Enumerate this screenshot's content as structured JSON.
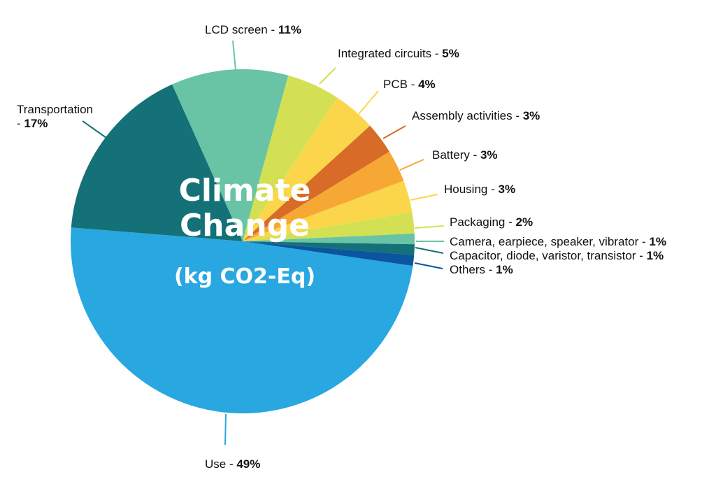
{
  "chart_data": {
    "type": "pie",
    "title": "Climate Change",
    "subtitle": "(kg CO2-Eq)",
    "slices": [
      {
        "label": "Use",
        "value": 49,
        "pct": "49%",
        "color": "#28A7E1"
      },
      {
        "label": "Transportation",
        "value": 17,
        "pct": "17%",
        "color": "#137177"
      },
      {
        "label": "LCD screen",
        "value": 11,
        "pct": "11%",
        "color": "#68C4A4"
      },
      {
        "label": "Integrated circuits",
        "value": 5,
        "pct": "5%",
        "color": "#D4E053"
      },
      {
        "label": "PCB",
        "value": 4,
        "pct": "4%",
        "color": "#FBD64A"
      },
      {
        "label": "Assembly activities",
        "value": 3,
        "pct": "3%",
        "color": "#D86B27"
      },
      {
        "label": "Battery",
        "value": 3,
        "pct": "3%",
        "color": "#F7A734"
      },
      {
        "label": "Housing",
        "value": 3,
        "pct": "3%",
        "color": "#FBD64A"
      },
      {
        "label": "Packaging",
        "value": 2,
        "pct": "2%",
        "color": "#D4E053"
      },
      {
        "label": "Camera, earpiece, speaker, vibrator",
        "value": 1,
        "pct": "1%",
        "color": "#68C4A4"
      },
      {
        "label": "Capacitor, diode, varistor, transistor",
        "value": 1,
        "pct": "1%",
        "color": "#137177"
      },
      {
        "label": "Others",
        "value": 1,
        "pct": "1%",
        "color": "#0B559F"
      }
    ]
  }
}
